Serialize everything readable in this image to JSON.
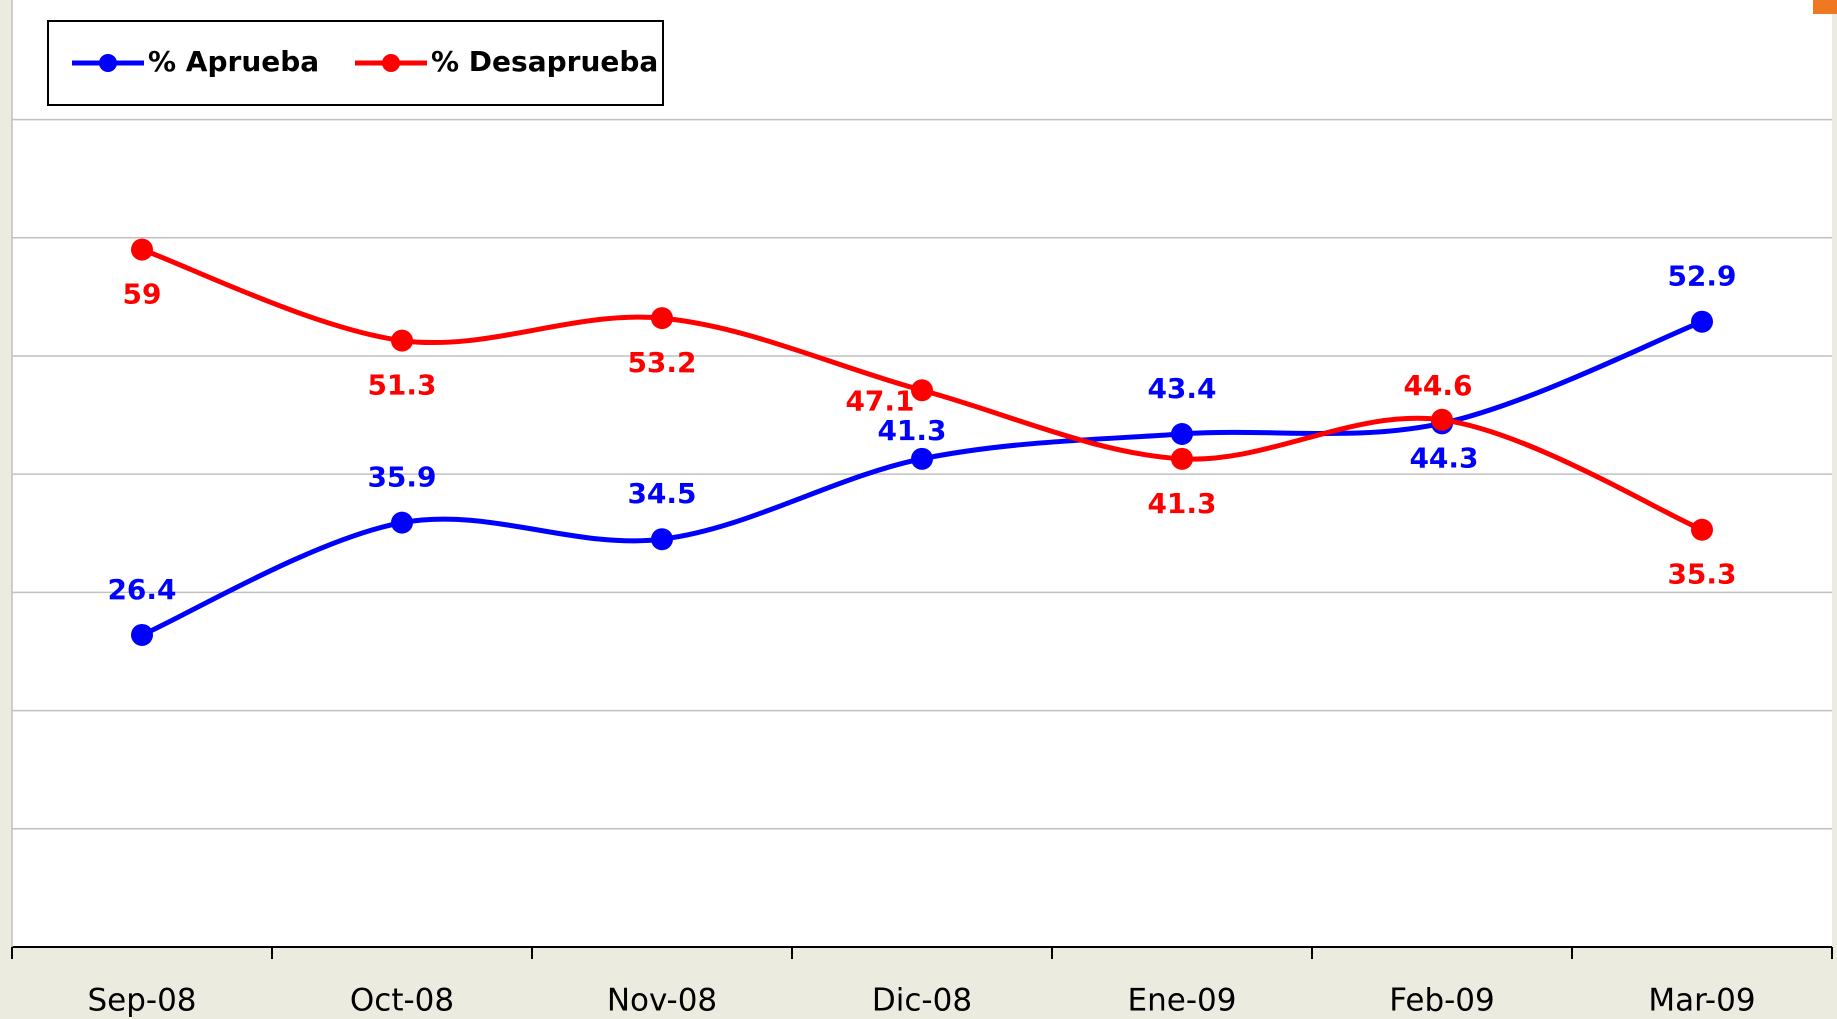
{
  "chart_data": {
    "type": "line",
    "categories": [
      "Sep-08",
      "Oct-08",
      "Nov-08",
      "Dic-08",
      "Ene-09",
      "Feb-09",
      "Mar-09"
    ],
    "series": [
      {
        "name": "% Aprueba",
        "color": "#0000ff",
        "values": [
          26.4,
          35.9,
          34.5,
          41.3,
          43.4,
          44.3,
          52.9
        ]
      },
      {
        "name": "% Desaprueba",
        "color": "#ff0000",
        "values": [
          59,
          51.3,
          53.2,
          47.1,
          41.3,
          44.6,
          35.3
        ]
      }
    ],
    "ylim": [
      0,
      78
    ],
    "yticks": [
      0,
      10,
      20,
      30,
      40,
      50,
      60,
      70
    ],
    "grid": true,
    "smooth": true
  }
}
